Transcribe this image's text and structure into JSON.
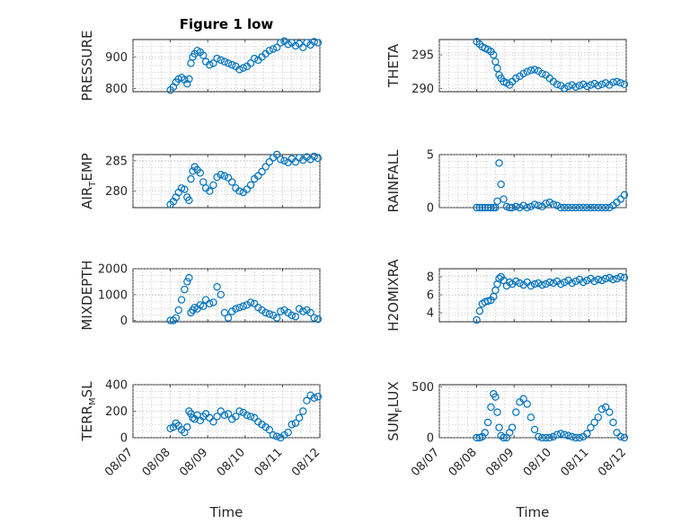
{
  "chart_data": [
    {
      "type": "scatter",
      "id": "pressure",
      "title": "Figure 1 low",
      "ylabel": "PRESSURE",
      "ylim": [
        790,
        955
      ],
      "yticks": [
        800,
        900
      ],
      "xlim": [
        "08/07",
        "08/12"
      ],
      "xticks": [
        "08/07",
        "08/08",
        "08/09",
        "08/10",
        "08/11",
        "08/12"
      ],
      "show_xticklabels": false,
      "xlabel": "",
      "series": [
        {
          "x": [
            1.0,
            1.08,
            1.15,
            1.22,
            1.3,
            1.38,
            1.45,
            1.5,
            1.55,
            1.6,
            1.65,
            1.72,
            1.8,
            1.88,
            1.95,
            2.05,
            2.15,
            2.25,
            2.35,
            2.45,
            2.55,
            2.65,
            2.75,
            2.85,
            2.95,
            3.05,
            3.15,
            3.25,
            3.35,
            3.45,
            3.55,
            3.65,
            3.75,
            3.85,
            3.95,
            4.05,
            4.15,
            4.25,
            4.35,
            4.45,
            4.55,
            4.65,
            4.75,
            4.85,
            4.95
          ],
          "y": [
            795,
            805,
            820,
            830,
            835,
            828,
            815,
            830,
            880,
            900,
            910,
            920,
            915,
            905,
            885,
            875,
            880,
            895,
            890,
            885,
            880,
            875,
            870,
            860,
            865,
            870,
            880,
            895,
            890,
            900,
            910,
            920,
            925,
            930,
            945,
            950,
            940,
            945,
            935,
            942,
            930,
            945,
            938,
            948,
            945
          ]
        }
      ]
    },
    {
      "type": "scatter",
      "id": "theta",
      "title": "",
      "ylabel": "THETA",
      "ylim": [
        289.5,
        297.3
      ],
      "yticks": [
        290,
        295
      ],
      "xlim": [
        "08/07",
        "08/12"
      ],
      "xticks": [
        "08/07",
        "08/08",
        "08/09",
        "08/10",
        "08/11",
        "08/12"
      ],
      "show_xticklabels": false,
      "xlabel": "",
      "series": [
        {
          "x": [
            1.0,
            1.08,
            1.15,
            1.22,
            1.3,
            1.38,
            1.45,
            1.5,
            1.55,
            1.6,
            1.65,
            1.72,
            1.8,
            1.88,
            1.95,
            2.05,
            2.15,
            2.25,
            2.35,
            2.45,
            2.55,
            2.65,
            2.75,
            2.85,
            2.95,
            3.05,
            3.15,
            3.25,
            3.35,
            3.45,
            3.55,
            3.65,
            3.75,
            3.85,
            3.95,
            4.05,
            4.15,
            4.25,
            4.35,
            4.45,
            4.55,
            4.65,
            4.75,
            4.85,
            4.95
          ],
          "y": [
            297,
            296.6,
            296.2,
            296,
            295.8,
            295.5,
            295,
            294,
            293,
            292,
            291.5,
            291,
            290.8,
            290.5,
            291,
            291.5,
            291.8,
            292.2,
            292.5,
            292.7,
            292.8,
            292.6,
            292.2,
            292,
            291.5,
            291,
            290.6,
            290.4,
            290,
            290.3,
            290.5,
            290.2,
            290.4,
            290.6,
            290.3,
            290.5,
            290.7,
            290.4,
            290.6,
            290.8,
            290.5,
            290.9,
            291,
            290.8,
            290.6
          ]
        }
      ]
    },
    {
      "type": "scatter",
      "id": "air_temp",
      "title": "",
      "ylabel": "AIR_TEMP",
      "ylim": [
        277.3,
        286
      ],
      "yticks": [
        280,
        285
      ],
      "xlim": [
        "08/07",
        "08/12"
      ],
      "xticks": [
        "08/07",
        "08/08",
        "08/09",
        "08/10",
        "08/11",
        "08/12"
      ],
      "show_xticklabels": false,
      "xlabel": "",
      "series": [
        {
          "x": [
            1.0,
            1.08,
            1.15,
            1.22,
            1.3,
            1.38,
            1.45,
            1.5,
            1.55,
            1.6,
            1.65,
            1.72,
            1.8,
            1.88,
            1.95,
            2.05,
            2.15,
            2.25,
            2.35,
            2.45,
            2.55,
            2.65,
            2.75,
            2.85,
            2.95,
            3.05,
            3.15,
            3.25,
            3.35,
            3.45,
            3.55,
            3.65,
            3.75,
            3.85,
            3.95,
            4.05,
            4.15,
            4.25,
            4.35,
            4.45,
            4.55,
            4.65,
            4.75,
            4.85,
            4.95
          ],
          "y": [
            277.8,
            278.3,
            279,
            279.8,
            280.5,
            280.3,
            279,
            278.5,
            282,
            283.3,
            284,
            283.5,
            283,
            281.5,
            280.5,
            280,
            281,
            282.3,
            282.7,
            282.5,
            282.2,
            281.5,
            280.5,
            280,
            279.8,
            280.3,
            281,
            282,
            282.5,
            283.2,
            284,
            284.8,
            285.5,
            286,
            285.2,
            285,
            284.7,
            285.3,
            284.8,
            285.5,
            285.1,
            285.6,
            285.2,
            285.7,
            285.4
          ]
        }
      ]
    },
    {
      "type": "scatter",
      "id": "rainfall",
      "title": "",
      "ylabel": "RAINFALL",
      "ylim": [
        0,
        5
      ],
      "yticks": [
        0,
        5
      ],
      "xlim": [
        "08/07",
        "08/12"
      ],
      "xticks": [
        "08/07",
        "08/08",
        "08/09",
        "08/10",
        "08/11",
        "08/12"
      ],
      "show_xticklabels": false,
      "xlabel": "",
      "series": [
        {
          "x": [
            1.0,
            1.08,
            1.15,
            1.22,
            1.3,
            1.38,
            1.45,
            1.5,
            1.55,
            1.6,
            1.65,
            1.72,
            1.8,
            1.88,
            1.95,
            2.05,
            2.15,
            2.25,
            2.35,
            2.45,
            2.55,
            2.65,
            2.75,
            2.85,
            2.95,
            3.05,
            3.15,
            3.25,
            3.35,
            3.45,
            3.55,
            3.65,
            3.75,
            3.85,
            3.95,
            4.05,
            4.15,
            4.25,
            4.35,
            4.45,
            4.55,
            4.65,
            4.75,
            4.85,
            4.95
          ],
          "y": [
            0,
            0,
            0,
            0,
            0,
            0,
            0,
            0,
            0.6,
            4.2,
            2.2,
            0.8,
            0.1,
            0,
            0,
            0.1,
            0,
            0.2,
            0,
            0.1,
            0.3,
            0.2,
            0.1,
            0.4,
            0.5,
            0.3,
            0.2,
            0,
            0,
            0,
            0,
            0,
            0,
            0,
            0,
            0,
            0,
            0,
            0,
            0,
            0,
            0.2,
            0.5,
            0.8,
            1.2
          ]
        }
      ]
    },
    {
      "type": "scatter",
      "id": "mixdepth",
      "title": "",
      "ylabel": "MIXDEPTH",
      "ylim": [
        -50,
        2000
      ],
      "yticks": [
        0,
        1000,
        2000
      ],
      "xlim": [
        "08/07",
        "08/12"
      ],
      "xticks": [
        "08/07",
        "08/08",
        "08/09",
        "08/10",
        "08/11",
        "08/12"
      ],
      "show_xticklabels": false,
      "xlabel": "",
      "series": [
        {
          "x": [
            1.0,
            1.08,
            1.15,
            1.22,
            1.3,
            1.38,
            1.45,
            1.5,
            1.55,
            1.6,
            1.65,
            1.72,
            1.8,
            1.88,
            1.95,
            2.05,
            2.15,
            2.25,
            2.35,
            2.45,
            2.55,
            2.65,
            2.75,
            2.85,
            2.95,
            3.05,
            3.15,
            3.25,
            3.35,
            3.45,
            3.55,
            3.65,
            3.75,
            3.85,
            3.95,
            4.05,
            4.15,
            4.25,
            4.35,
            4.45,
            4.55,
            4.65,
            4.75,
            4.85,
            4.95
          ],
          "y": [
            0,
            0,
            100,
            400,
            800,
            1200,
            1500,
            1650,
            300,
            400,
            500,
            450,
            600,
            550,
            800,
            650,
            700,
            1300,
            1000,
            300,
            100,
            350,
            450,
            500,
            550,
            600,
            700,
            650,
            500,
            400,
            300,
            250,
            200,
            100,
            350,
            400,
            300,
            200,
            150,
            450,
            350,
            400,
            300,
            100,
            50
          ]
        }
      ]
    },
    {
      "type": "scatter",
      "id": "h2omixra",
      "title": "",
      "ylabel": "H2OMIXRA",
      "ylim": [
        3,
        8.9
      ],
      "yticks": [
        4,
        6,
        8
      ],
      "xlim": [
        "08/07",
        "08/12"
      ],
      "xticks": [
        "08/07",
        "08/08",
        "08/09",
        "08/10",
        "08/11",
        "08/12"
      ],
      "show_xticklabels": false,
      "xlabel": "",
      "series": [
        {
          "x": [
            1.0,
            1.08,
            1.15,
            1.22,
            1.3,
            1.38,
            1.45,
            1.5,
            1.55,
            1.6,
            1.65,
            1.72,
            1.8,
            1.88,
            1.95,
            2.05,
            2.15,
            2.25,
            2.35,
            2.45,
            2.55,
            2.65,
            2.75,
            2.85,
            2.95,
            3.05,
            3.15,
            3.25,
            3.35,
            3.45,
            3.55,
            3.65,
            3.75,
            3.85,
            3.95,
            4.05,
            4.15,
            4.25,
            4.35,
            4.45,
            4.55,
            4.65,
            4.75,
            4.85,
            4.95
          ],
          "y": [
            3.2,
            4.2,
            5.0,
            5.2,
            5.3,
            5.4,
            5.8,
            6.5,
            7.2,
            7.8,
            8.0,
            7.6,
            7.0,
            7.4,
            7.2,
            7.5,
            7.3,
            7.1,
            7.4,
            7.0,
            7.2,
            7.3,
            7.1,
            7.2,
            7.4,
            7.3,
            7.5,
            7.2,
            7.4,
            7.6,
            7.3,
            7.5,
            7.7,
            7.4,
            7.6,
            7.8,
            7.5,
            7.7,
            7.6,
            7.8,
            7.9,
            7.7,
            7.8,
            8.0,
            7.9
          ]
        }
      ]
    },
    {
      "type": "scatter",
      "id": "terr_msl",
      "title": "",
      "ylabel": "TERR_MSL",
      "ylim": [
        0,
        400
      ],
      "yticks": [
        0,
        200,
        400
      ],
      "xlim": [
        "08/07",
        "08/12"
      ],
      "xticks": [
        "08/07",
        "08/08",
        "08/09",
        "08/10",
        "08/11",
        "08/12"
      ],
      "show_xticklabels": true,
      "xlabel": "Time",
      "series": [
        {
          "x": [
            1.0,
            1.08,
            1.15,
            1.22,
            1.3,
            1.38,
            1.45,
            1.5,
            1.55,
            1.6,
            1.65,
            1.72,
            1.8,
            1.88,
            1.95,
            2.05,
            2.15,
            2.25,
            2.35,
            2.45,
            2.55,
            2.65,
            2.75,
            2.85,
            2.95,
            3.05,
            3.15,
            3.25,
            3.35,
            3.45,
            3.55,
            3.65,
            3.75,
            3.85,
            3.95,
            4.05,
            4.15,
            4.25,
            4.35,
            4.45,
            4.55,
            4.65,
            4.75,
            4.85,
            4.95
          ],
          "y": [
            70,
            80,
            110,
            90,
            60,
            40,
            80,
            200,
            180,
            150,
            140,
            170,
            130,
            160,
            180,
            150,
            120,
            160,
            200,
            170,
            180,
            140,
            160,
            200,
            190,
            170,
            160,
            150,
            120,
            100,
            80,
            60,
            20,
            10,
            0,
            20,
            40,
            100,
            110,
            150,
            200,
            280,
            320,
            300,
            310
          ]
        }
      ]
    },
    {
      "type": "scatter",
      "id": "sun_flux",
      "title": "",
      "ylabel": "SUN_FLUX",
      "ylim": [
        0,
        520
      ],
      "yticks": [
        0,
        500
      ],
      "xlim": [
        "08/07",
        "08/12"
      ],
      "xticks": [
        "08/07",
        "08/08",
        "08/09",
        "08/10",
        "08/11",
        "08/12"
      ],
      "show_xticklabels": true,
      "xlabel": "Time",
      "series": [
        {
          "x": [
            1.0,
            1.08,
            1.15,
            1.22,
            1.3,
            1.38,
            1.45,
            1.5,
            1.55,
            1.6,
            1.65,
            1.72,
            1.8,
            1.88,
            1.95,
            2.05,
            2.15,
            2.25,
            2.35,
            2.45,
            2.55,
            2.65,
            2.75,
            2.85,
            2.95,
            3.05,
            3.15,
            3.25,
            3.35,
            3.45,
            3.55,
            3.65,
            3.75,
            3.85,
            3.95,
            4.05,
            4.15,
            4.25,
            4.35,
            4.45,
            4.55,
            4.65,
            4.75,
            4.85,
            4.95
          ],
          "y": [
            0,
            0,
            10,
            50,
            150,
            300,
            430,
            400,
            250,
            100,
            20,
            0,
            0,
            50,
            100,
            250,
            350,
            380,
            330,
            200,
            80,
            10,
            0,
            0,
            0,
            10,
            30,
            40,
            30,
            20,
            10,
            0,
            0,
            10,
            40,
            100,
            150,
            200,
            280,
            300,
            250,
            150,
            50,
            10,
            0
          ]
        }
      ]
    }
  ]
}
